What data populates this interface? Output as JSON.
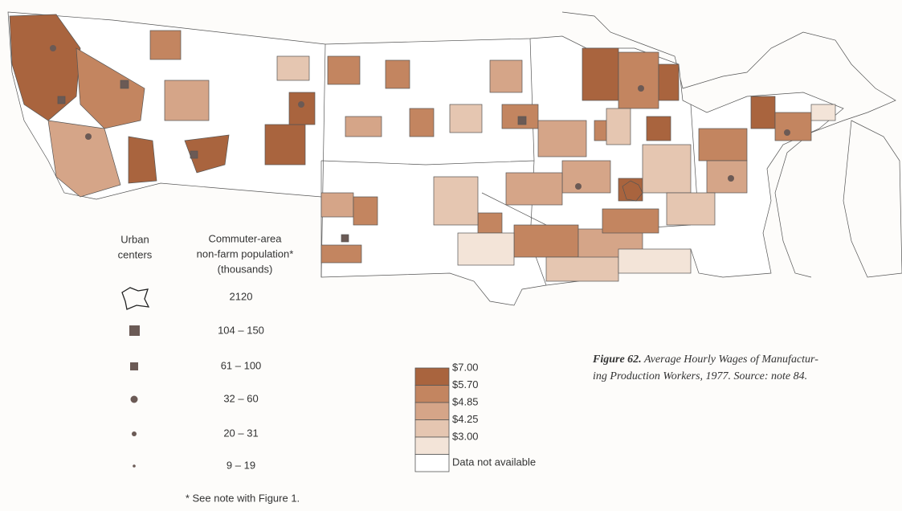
{
  "symbol_legend": {
    "urban_heading": [
      "Urban",
      "centers"
    ],
    "population_heading": [
      "Commuter-area",
      "non-farm population*",
      "(thousands)"
    ],
    "classes": [
      "2120",
      "104 – 150",
      "61 – 100",
      "32 – 60",
      "20 – 31",
      "9 – 19"
    ]
  },
  "color_legend": {
    "items": [
      {
        "label": "$7.00",
        "color": "#a9643e"
      },
      {
        "label": "$5.70",
        "color": "#c38560"
      },
      {
        "label": "$4.85",
        "color": "#d5a588"
      },
      {
        "label": "$4.25",
        "color": "#e5c6b1"
      },
      {
        "label": "$3.00",
        "color": "#f3e4d8"
      },
      {
        "label": "Data not available",
        "color": "#ffffff"
      }
    ]
  },
  "caption": {
    "figure": "Figure 62.",
    "lines": [
      "Average Hourly Wages of Manufactur-",
      "ing Production Workers, 1977. Source: note 84."
    ]
  },
  "footnote": "* See note with Figure 1."
}
